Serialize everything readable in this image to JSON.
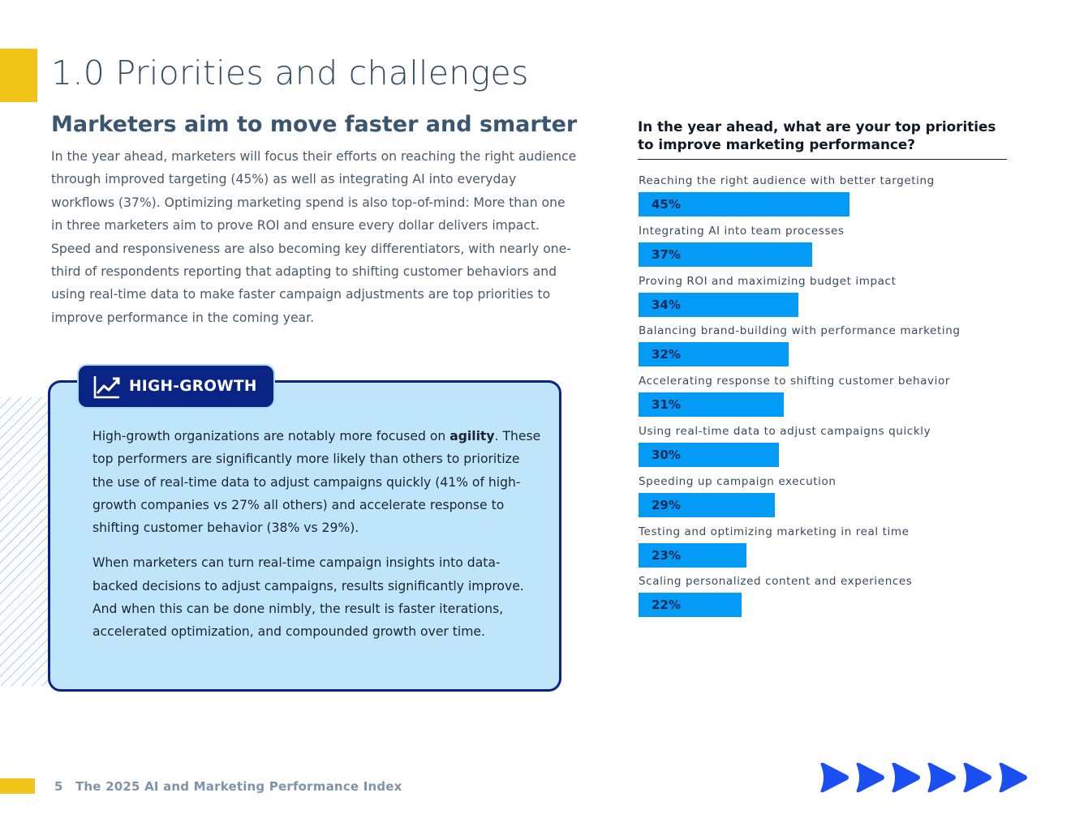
{
  "colors": {
    "accent_yellow": "#f0c419",
    "navy": "#0a2486",
    "bar_blue": "#049bf7",
    "callout_bg": "#bfe5fb",
    "arrow_blue": "#1b4ff2"
  },
  "header": {
    "section_title": "1.0 Priorities and challenges"
  },
  "article": {
    "subheading": "Marketers aim to move faster and smarter",
    "intro": "In the year ahead, marketers will focus their efforts on reaching the right audience through improved targeting (45%) as well as integrating AI into everyday workflows (37%). Optimizing marketing spend is also top-of-mind: More than one in three marketers aim to prove ROI and ensure every dollar delivers impact. Speed and responsiveness are also becoming key differentiators, with nearly one-third of respondents reporting that adapting to shifting customer behaviors and using real-time data to make faster campaign adjustments are top priorities to improve performance in the coming year."
  },
  "callout": {
    "tag_icon": "trending-up-icon",
    "tag_label": "HIGH-GROWTH",
    "p1_before": "High-growth organizations are notably more focused on ",
    "p1_bold": "agility",
    "p1_after": ". These top performers are significantly more likely than others to prioritize the use of real-time data to adjust campaigns quickly (41% of high-growth companies vs 27% all others) and accelerate response to shifting customer behavior (38% vs 29%).",
    "p2": "When marketers can turn real-time campaign insights into data-backed decisions to adjust campaigns, results significantly improve. And when this can be done nimbly, the result is faster iterations, accelerated optimization, and compounded growth over time."
  },
  "chart_data": {
    "type": "bar",
    "orientation": "horizontal",
    "title": "In the year ahead, what are your top priorities to improve marketing performance?",
    "categories": [
      "Reaching the right audience with better targeting",
      "Integrating AI into team processes",
      "Proving ROI and maximizing budget impact",
      "Balancing brand-building with performance marketing",
      "Accelerating response to shifting customer behavior",
      "Using real-time data to adjust campaigns quickly",
      "Speeding up campaign execution",
      "Testing and optimizing marketing in real time",
      "Scaling personalized content and experiences"
    ],
    "values": [
      45,
      37,
      34,
      32,
      31,
      30,
      29,
      23,
      22
    ],
    "value_labels": [
      "45%",
      "37%",
      "34%",
      "32%",
      "31%",
      "30%",
      "29%",
      "23%",
      "22%"
    ],
    "xlim": [
      0,
      100
    ],
    "grid": false,
    "color": "#049bf7"
  },
  "footer": {
    "page_number": "5",
    "doc_title": "The 2025 AI and Marketing Performance Index",
    "decoration": "play-arrow-icon"
  }
}
